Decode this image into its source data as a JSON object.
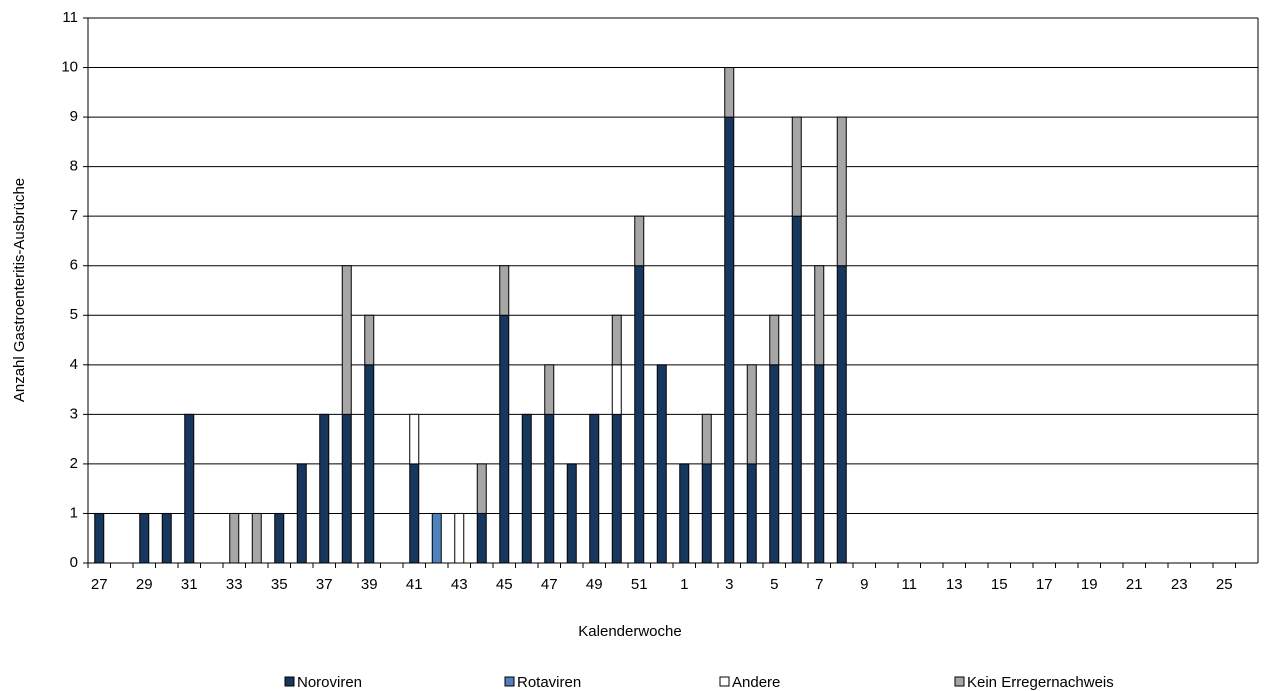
{
  "chart_data": {
    "type": "stacked-bar",
    "x_label": "Kalenderwoche",
    "y_label": "Anzahl Gastroenteritis-Ausbrüche",
    "categories": [
      "27",
      null,
      "29",
      null,
      "31",
      null,
      "33",
      null,
      "35",
      null,
      "37",
      null,
      "39",
      null,
      "41",
      null,
      "43",
      null,
      "45",
      null,
      "47",
      null,
      "49",
      null,
      "51",
      null,
      "1",
      null,
      "3",
      null,
      "5",
      null,
      "7",
      null,
      "9",
      null,
      "11",
      null,
      "13",
      null,
      "15",
      null,
      "17",
      null,
      "19",
      null,
      "21",
      null,
      "23",
      null,
      "25",
      null
    ],
    "series": [
      {
        "name": "Noroviren",
        "color": "#17375e",
        "values": [
          1,
          0,
          1,
          1,
          3,
          0,
          0,
          0,
          1,
          2,
          3,
          3,
          4,
          0,
          2,
          0,
          0,
          1,
          5,
          3,
          3,
          2,
          3,
          3,
          6,
          4,
          2,
          2,
          9,
          2,
          4,
          7,
          4,
          6,
          0,
          0,
          0,
          0,
          0,
          0,
          0,
          0,
          0,
          0,
          0,
          0,
          0,
          0,
          0,
          0,
          0,
          0
        ]
      },
      {
        "name": "Rotaviren",
        "color": "#4f81bd",
        "values": [
          0,
          0,
          0,
          0,
          0,
          0,
          0,
          0,
          0,
          0,
          0,
          0,
          0,
          0,
          0,
          1,
          0,
          0,
          0,
          0,
          0,
          0,
          0,
          0,
          0,
          0,
          0,
          0,
          0,
          0,
          0,
          0,
          0,
          0,
          0,
          0,
          0,
          0,
          0,
          0,
          0,
          0,
          0,
          0,
          0,
          0,
          0,
          0,
          0,
          0,
          0,
          0
        ]
      },
      {
        "name": "Andere",
        "color": "#ffffff",
        "values": [
          0,
          0,
          0,
          0,
          0,
          0,
          0,
          0,
          0,
          0,
          0,
          0,
          0,
          0,
          1,
          0,
          1,
          0,
          0,
          0,
          0,
          0,
          0,
          1,
          0,
          0,
          0,
          0,
          0,
          0,
          0,
          0,
          0,
          0,
          0,
          0,
          0,
          0,
          0,
          0,
          0,
          0,
          0,
          0,
          0,
          0,
          0,
          0,
          0,
          0,
          0,
          0
        ]
      },
      {
        "name": "Kein Erregernachweis",
        "color": "#a6a6a6",
        "values": [
          0,
          0,
          0,
          0,
          0,
          0,
          1,
          1,
          0,
          0,
          0,
          3,
          1,
          0,
          0,
          0,
          0,
          1,
          1,
          0,
          1,
          0,
          0,
          1,
          1,
          0,
          0,
          1,
          1,
          2,
          1,
          2,
          2,
          3,
          0,
          0,
          0,
          0,
          0,
          0,
          0,
          0,
          0,
          0,
          0,
          0,
          0,
          0,
          0,
          0,
          0,
          0
        ]
      }
    ],
    "ylim": [
      0,
      11
    ],
    "yticks": [
      0,
      1,
      2,
      3,
      4,
      5,
      6,
      7,
      8,
      9,
      10,
      11
    ],
    "grid": true,
    "legend": "bottom"
  }
}
